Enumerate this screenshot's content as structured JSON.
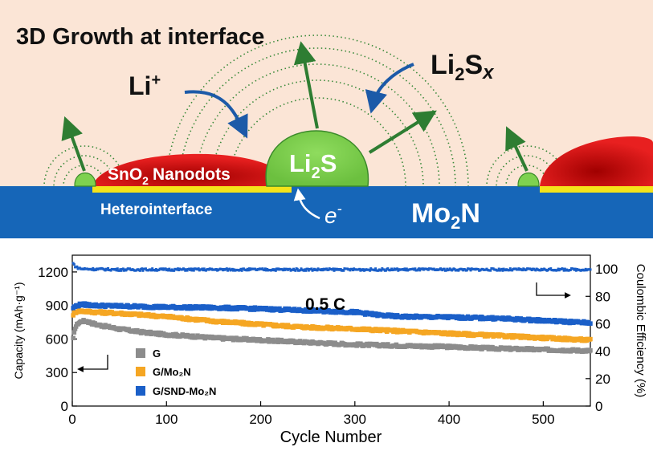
{
  "schematic": {
    "title": "3D Growth at interface",
    "li_ion_label": "Li",
    "li_ion_charge": "+",
    "polysulfide_label_prefix": "Li",
    "polysulfide_label_sub": "2",
    "polysulfide_label_s": "S",
    "polysulfide_label_x": "x",
    "li2s_label_prefix": "Li",
    "li2s_label_sub": "2",
    "li2s_label_s": "S",
    "nanodots_label_prefix": "SnO",
    "nanodots_label_sub": "2",
    "nanodots_label_suffix": "Nanodots",
    "heterointerface_label": "Heterointerface",
    "electron_label": "e",
    "electron_charge": "-",
    "substrate_label_prefix": "Mo",
    "substrate_label_sub": "2",
    "substrate_label_suffix": "N",
    "colors": {
      "background": "#fbe5d6",
      "substrate": "#1666b8",
      "nanodot": "#e01818",
      "li2s": "#7ed14f",
      "interface": "#f4e31a",
      "arrow_green": "#2e7d32",
      "arrow_blue": "#1c5aa8"
    }
  },
  "chart_data": {
    "type": "scatter",
    "annotation": "0.5 C",
    "xlabel": "Cycle Number",
    "ylabel_left": "Capacity (mAh·g⁻¹)",
    "ylabel_right": "Coulombic Efficiency (%)",
    "xlim": [
      0,
      550
    ],
    "ylim_left": [
      0,
      1350
    ],
    "ylim_right": [
      0,
      110
    ],
    "xticks": [
      "0",
      "100",
      "200",
      "300",
      "400",
      "500"
    ],
    "yticks_left": [
      "0",
      "300",
      "600",
      "900",
      "1200"
    ],
    "yticks_right": [
      "0",
      "20",
      "40",
      "60",
      "80",
      "100"
    ],
    "legend_position": "bottom-left",
    "series": [
      {
        "name": "G",
        "color": "#8c8c8c",
        "axis": "left",
        "x": [
          1,
          3,
          6,
          10,
          15,
          25,
          50,
          75,
          100,
          150,
          200,
          250,
          300,
          350,
          400,
          450,
          500,
          550
        ],
        "y": [
          600,
          700,
          740,
          760,
          760,
          730,
          690,
          660,
          640,
          610,
          590,
          570,
          550,
          540,
          530,
          515,
          505,
          495
        ]
      },
      {
        "name": "G/Mo₂N",
        "color": "#f5a623",
        "axis": "left",
        "x": [
          1,
          5,
          10,
          25,
          50,
          75,
          100,
          150,
          200,
          250,
          300,
          350,
          400,
          450,
          500,
          550
        ],
        "y": [
          820,
          850,
          850,
          840,
          830,
          815,
          800,
          760,
          730,
          705,
          690,
          670,
          650,
          630,
          610,
          590
        ]
      },
      {
        "name": "G/SND-Mo₂N",
        "color": "#1a5fc8",
        "axis": "left",
        "x": [
          1,
          5,
          10,
          25,
          50,
          100,
          150,
          200,
          250,
          300,
          330,
          350,
          400,
          450,
          500,
          550
        ],
        "y": [
          880,
          900,
          910,
          900,
          895,
          885,
          880,
          870,
          855,
          840,
          810,
          800,
          795,
          785,
          765,
          745
        ]
      },
      {
        "name": "Coulombic efficiency",
        "color": "#1a5fc8",
        "axis": "right",
        "x": [
          1,
          3,
          5,
          10,
          50,
          100,
          200,
          300,
          400,
          500,
          550
        ],
        "y": [
          104,
          102,
          101,
          100,
          99.5,
          99.5,
          99.5,
          99.5,
          99.5,
          99.5,
          99.5
        ]
      }
    ]
  }
}
